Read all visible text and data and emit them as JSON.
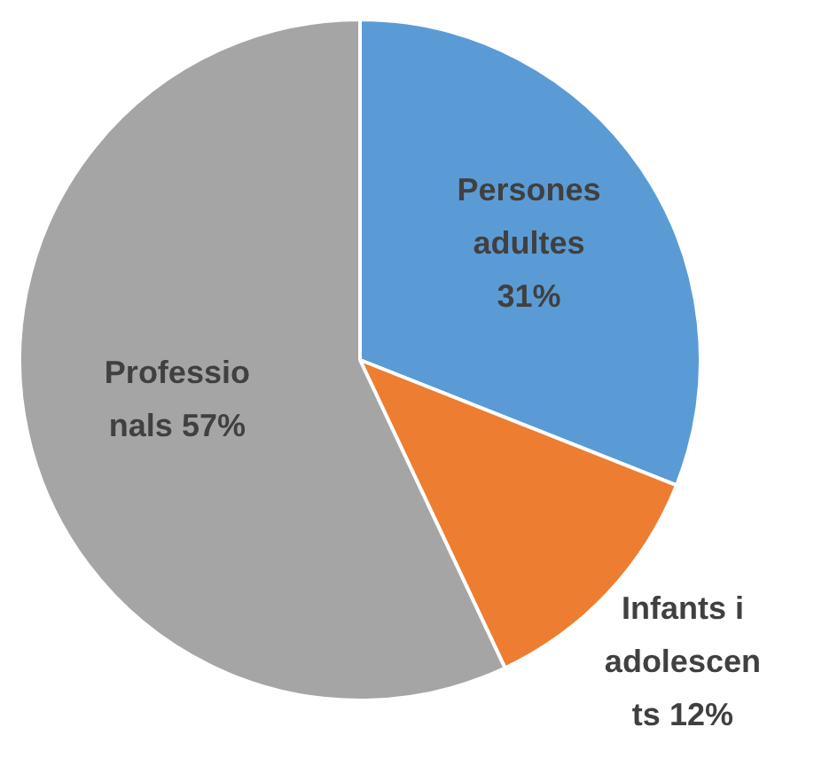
{
  "chart_data": {
    "type": "pie",
    "categories": [
      "Persones adultes",
      "Infants i adolescents",
      "Professionals"
    ],
    "values": [
      31,
      12,
      57
    ],
    "value_labels": [
      "31%",
      "12%",
      "57%"
    ],
    "colors": [
      "#5b9bd5",
      "#ed7d31",
      "#a5a5a5"
    ],
    "legend": false
  }
}
